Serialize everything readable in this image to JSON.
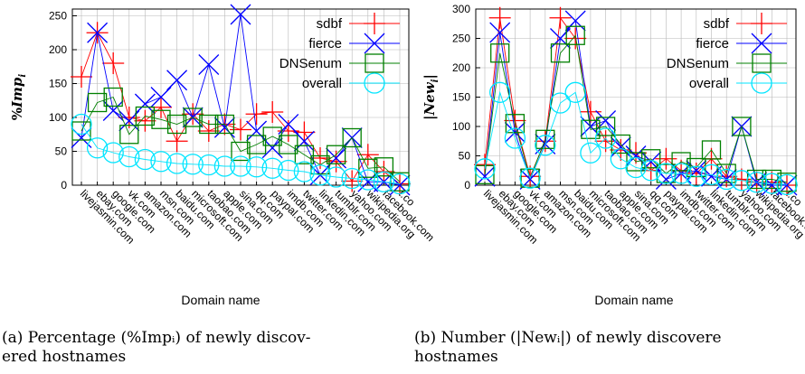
{
  "colors": {
    "sdbf": "#ff0000",
    "fierce": "#0000ff",
    "DNSenum": "#008000",
    "overall": "#00e5ff"
  },
  "chart_data": [
    {
      "type": "line",
      "panel_id": "a",
      "xlabel": "Domain name",
      "ylabel": "%Imp_i",
      "ylabel_display": {
        "prefix": "%",
        "main": "Imp",
        "sub": "i"
      },
      "ylim": [
        0,
        260
      ],
      "yticks": [
        0,
        50,
        100,
        150,
        200,
        250
      ],
      "grid": true,
      "legend": "top-right",
      "categories": [
        "livejasmin.com",
        "ebay.com",
        "google.com",
        "vk.com",
        "amazon.com",
        "msn.com",
        "baidu.com",
        "microsoft.com",
        "taobao.com",
        "apple.com",
        "sina.com",
        "qq.com",
        "paypal.com",
        "imdb.com",
        "twitter.com",
        "linkedin.com",
        "tumblr.com",
        "yahoo.com",
        "wikipedia.org",
        "facebook.com",
        "t.co"
      ],
      "series": [
        {
          "name": "sdbf",
          "values": [
            160,
            225,
            180,
            100,
            95,
            115,
            65,
            105,
            80,
            90,
            82,
            105,
            108,
            80,
            78,
            40,
            35,
            6,
            45,
            20,
            2
          ]
        },
        {
          "name": "fierce",
          "values": [
            70,
            225,
            110,
            95,
            120,
            130,
            155,
            100,
            178,
            85,
            252,
            80,
            55,
            90,
            65,
            15,
            40,
            70,
            5,
            5,
            0
          ]
        },
        {
          "name": "DNSenum",
          "values": [
            80,
            122,
            130,
            75,
            102,
            97,
            90,
            100,
            90,
            90,
            50,
            60,
            72,
            60,
            45,
            30,
            45,
            70,
            25,
            27,
            5
          ]
        },
        {
          "name": "overall",
          "values": [
            90,
            55,
            48,
            42,
            38,
            35,
            32,
            31,
            30,
            28,
            28,
            27,
            25,
            22,
            20,
            15,
            12,
            10,
            8,
            5,
            2
          ]
        }
      ]
    },
    {
      "type": "line",
      "panel_id": "b",
      "xlabel": "Domain name",
      "ylabel": "|New_i|",
      "ylabel_display": {
        "prefix": "|",
        "main": "New",
        "sub": "i",
        "suffix": "|"
      },
      "ylim": [
        0,
        300
      ],
      "yticks": [
        0,
        50,
        100,
        150,
        200,
        250,
        300
      ],
      "grid": true,
      "legend": "top-right",
      "categories": [
        "livejasmin.com",
        "ebay.com",
        "google.com",
        "vk.com",
        "amazon.com",
        "msn.com",
        "baidu.com",
        "microsoft.com",
        "taobao.com",
        "apple.com",
        "sina.com",
        "qq.com",
        "paypal.com",
        "imdb.com",
        "twitter.com",
        "linkedin.com",
        "tumblr.com",
        "yahoo.com",
        "wikipedia.org",
        "facebook.com",
        "t.co"
      ],
      "series": [
        {
          "name": "sdbf",
          "values": [
            35,
            285,
            110,
            15,
            75,
            285,
            250,
            125,
            75,
            60,
            55,
            25,
            45,
            25,
            20,
            45,
            15,
            10,
            5,
            5,
            0
          ]
        },
        {
          "name": "fierce",
          "values": [
            15,
            260,
            90,
            10,
            70,
            250,
            280,
            100,
            110,
            65,
            50,
            40,
            10,
            20,
            25,
            15,
            10,
            100,
            5,
            0,
            0
          ]
        },
        {
          "name": "DNSenum",
          "values": [
            18,
            225,
            105,
            12,
            78,
            225,
            255,
            95,
            100,
            70,
            40,
            45,
            20,
            40,
            30,
            60,
            20,
            100,
            10,
            10,
            5
          ]
        },
        {
          "name": "overall",
          "values": [
            28,
            158,
            80,
            12,
            68,
            140,
            158,
            55,
            80,
            45,
            30,
            25,
            20,
            20,
            15,
            18,
            10,
            8,
            5,
            3,
            1
          ]
        }
      ]
    }
  ],
  "captions": {
    "a": {
      "line1": "(a) Percentage (%Impᵢ) of newly discov-",
      "line2": "ered hostnames"
    },
    "b": {
      "line1": "(b) Number (|Newᵢ|) of newly discovere",
      "line2": "hostnames"
    }
  }
}
